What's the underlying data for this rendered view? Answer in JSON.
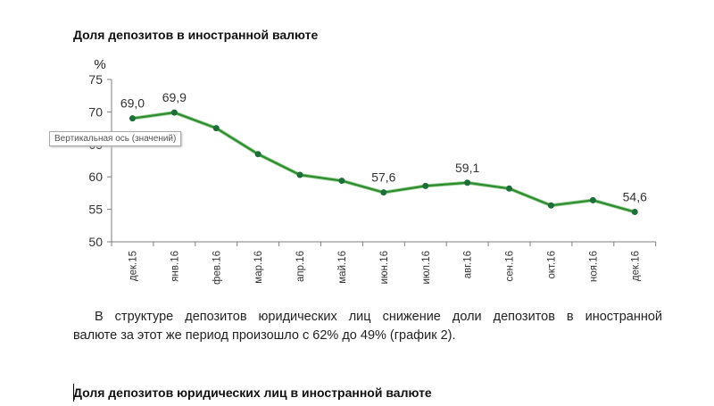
{
  "document": {
    "chart1_title": "Доля депозитов в иностранной  валюте",
    "paragraph_line1": "В структуре депозитов юридических лиц снижение доли депозитов в иностранной",
    "paragraph_line2": "валюте за этот же период произошло с 62% до 49% (график 2).",
    "chart2_title": "Доля депозитов юридических лиц в иностранной  валюте",
    "tooltip": "Вертикальная ось (значений)"
  },
  "colors": {
    "line": "#2e8b2e",
    "marker": "#1e6e3a",
    "axis": "#7f7f7f"
  },
  "chart_data": {
    "type": "line",
    "title": "Доля депозитов в иностранной  валюте",
    "ylabel": "%",
    "xlabel": "",
    "ylim": [
      50,
      75
    ],
    "yticks": [
      50,
      55,
      60,
      65,
      70,
      75
    ],
    "grid": false,
    "legend": "none",
    "categories": [
      "дек.15",
      "янв.16",
      "фев.16",
      "мар.16",
      "апр.16",
      "май.16",
      "июн.16",
      "июл.16",
      "авг.16",
      "сен.16",
      "окт.16",
      "ноя.16",
      "дек.16"
    ],
    "series": [
      {
        "name": "Доля депозитов в иностранной валюте",
        "values": [
          69.0,
          69.9,
          67.5,
          63.5,
          60.3,
          59.4,
          57.6,
          58.6,
          59.1,
          58.2,
          55.6,
          56.4,
          54.6
        ]
      }
    ],
    "data_labels": [
      {
        "index": 0,
        "text": "69,0"
      },
      {
        "index": 1,
        "text": "69,9"
      },
      {
        "index": 6,
        "text": "57,6"
      },
      {
        "index": 8,
        "text": "59,1"
      },
      {
        "index": 12,
        "text": "54,6"
      }
    ]
  }
}
